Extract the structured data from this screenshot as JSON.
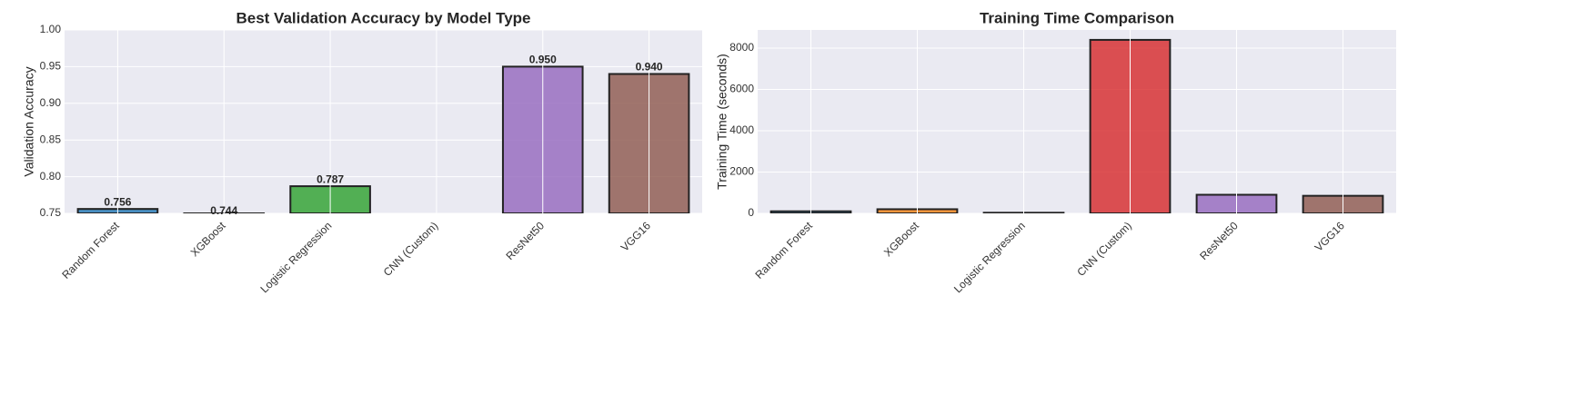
{
  "chart_data": [
    {
      "type": "bar",
      "title": "Best Validation Accuracy by Model Type",
      "y_label": "Validation Accuracy",
      "categories": [
        "Random Forest",
        "XGBoost",
        "Logistic Regression",
        "CNN (Custom)",
        "ResNet50",
        "VGG16"
      ],
      "values": [
        0.756,
        0.744,
        0.787,
        null,
        0.95,
        0.94
      ],
      "value_labels": [
        "0.756",
        "0.744",
        "0.787",
        null,
        "0.950",
        "0.940"
      ],
      "colors": [
        "#1f77b4",
        "#ff7f0e",
        "#2ca02c",
        "#d62728",
        "#9467bd",
        "#8c564b"
      ],
      "ylim": [
        0.75,
        1.0
      ],
      "yticks": [
        {
          "value": 0.75,
          "label": "0.75"
        },
        {
          "value": 0.8,
          "label": "0.80"
        },
        {
          "value": 0.85,
          "label": "0.85"
        },
        {
          "value": 0.9,
          "label": "0.90"
        },
        {
          "value": 0.95,
          "label": "0.95"
        },
        {
          "value": 1.0,
          "label": "1.00"
        }
      ],
      "grid": true
    },
    {
      "type": "bar",
      "title": "Training Time Comparison",
      "y_label": "Training Time (seconds)",
      "categories": [
        "Random Forest",
        "XGBoost",
        "Logistic Regression",
        "CNN (Custom)",
        "ResNet50",
        "VGG16"
      ],
      "values": [
        100,
        200,
        30,
        8400,
        900,
        850
      ],
      "colors": [
        "#1f77b4",
        "#ff7f0e",
        "#2ca02c",
        "#d62728",
        "#9467bd",
        "#8c564b"
      ],
      "ylim": [
        0,
        8880
      ],
      "yticks": [
        0,
        2000,
        4000,
        6000,
        8000
      ],
      "grid": true
    }
  ]
}
